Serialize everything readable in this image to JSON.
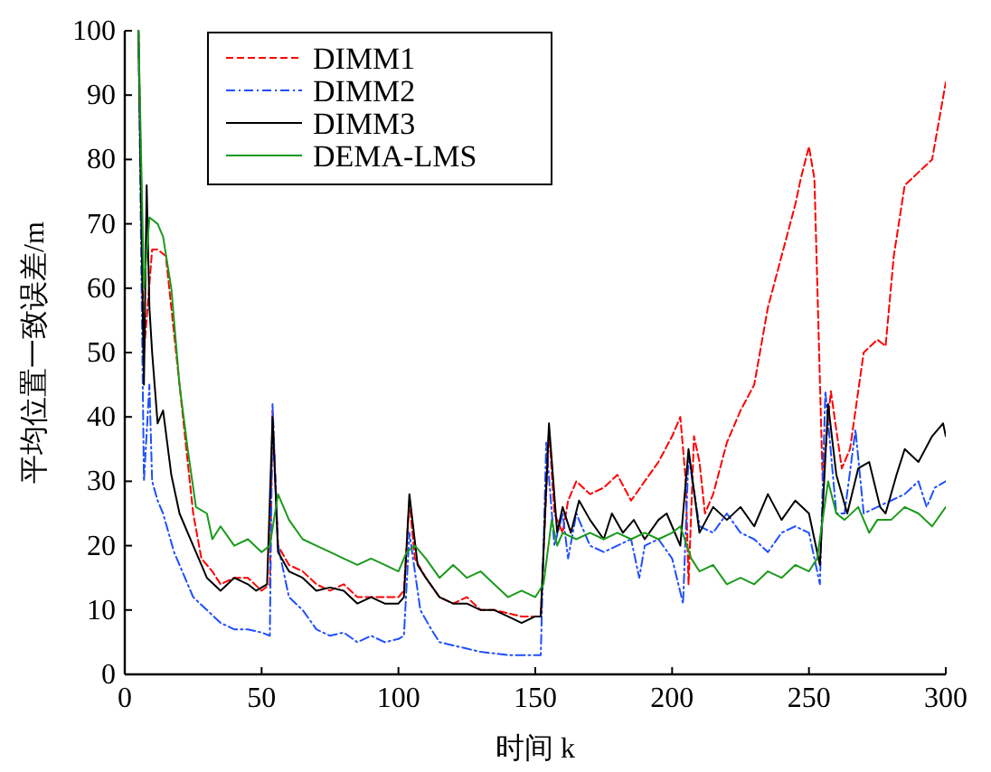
{
  "chart_data": {
    "type": "line",
    "xlabel": "时间 k",
    "ylabel": "平均位置一致误差/m",
    "xlim": [
      0,
      300
    ],
    "ylim": [
      0,
      100
    ],
    "xticks": [
      0,
      50,
      100,
      150,
      200,
      250,
      300
    ],
    "yticks": [
      0,
      10,
      20,
      30,
      40,
      50,
      60,
      70,
      80,
      90,
      100
    ],
    "grid": false,
    "legend": "top left",
    "series": [
      {
        "name": "DIMM1",
        "color": "#ff0000",
        "line_style": "dashed",
        "x": [
          5,
          7,
          10,
          12,
          15,
          20,
          25,
          28,
          32,
          35,
          40,
          45,
          50,
          53,
          54,
          56,
          60,
          65,
          70,
          75,
          80,
          85,
          90,
          95,
          100,
          102,
          104,
          106,
          110,
          115,
          120,
          125,
          130,
          135,
          140,
          145,
          150,
          152,
          155,
          157,
          160,
          162,
          165,
          170,
          175,
          180,
          185,
          190,
          195,
          200,
          203,
          205,
          206,
          208,
          210,
          212,
          215,
          220,
          225,
          230,
          235,
          240,
          245,
          247,
          250,
          252,
          255,
          258,
          262,
          265,
          270,
          275,
          278,
          281,
          285,
          290,
          295,
          300
        ],
        "values": [
          100,
          50,
          66,
          66,
          65,
          45,
          25,
          18,
          16,
          14,
          15,
          15,
          13,
          14,
          41,
          20,
          17,
          16,
          14,
          13,
          14,
          12,
          12,
          12,
          12,
          13,
          27,
          18,
          15,
          12,
          11,
          12,
          10,
          10,
          9.5,
          9,
          9,
          9,
          38,
          25,
          22,
          27,
          30,
          28,
          29,
          31,
          27,
          30,
          33,
          37,
          40,
          30,
          14,
          37,
          33,
          25,
          28,
          36,
          41,
          45,
          57,
          65,
          73,
          77,
          82,
          77,
          30,
          44,
          32,
          35,
          50,
          52,
          51,
          65,
          76,
          78,
          80,
          92
        ]
      },
      {
        "name": "DIMM2",
        "color": "#1f4fff",
        "line_style": "dashdot",
        "x": [
          5,
          7,
          9,
          10,
          12,
          14,
          18,
          22,
          25,
          30,
          35,
          40,
          45,
          50,
          53,
          54,
          56,
          60,
          65,
          70,
          75,
          80,
          85,
          90,
          95,
          100,
          102,
          104,
          108,
          112,
          115,
          120,
          125,
          130,
          140,
          150,
          152,
          154,
          157,
          160,
          162,
          165,
          170,
          175,
          180,
          185,
          188,
          190,
          195,
          200,
          204,
          206,
          210,
          215,
          220,
          225,
          230,
          235,
          240,
          245,
          250,
          254,
          256,
          260,
          263,
          267,
          270,
          275,
          280,
          285,
          290,
          293,
          296,
          300
        ],
        "values": [
          100,
          30,
          45,
          30,
          27,
          25,
          19,
          15,
          12,
          10,
          8,
          7,
          7,
          6.5,
          6,
          42,
          20,
          12,
          10,
          7,
          6,
          6.5,
          5,
          6,
          5,
          5.5,
          6,
          22,
          10,
          7,
          5,
          4.5,
          4,
          3.5,
          3,
          3,
          3,
          36,
          20,
          25,
          18,
          25,
          20,
          19,
          20,
          21,
          15,
          20,
          21,
          18,
          11,
          34,
          23,
          22,
          25,
          22,
          21,
          19,
          22,
          23,
          22,
          14,
          44,
          25,
          25,
          38,
          25,
          26,
          27,
          28,
          30,
          26,
          29,
          30
        ]
      },
      {
        "name": "DIMM3",
        "color": "#000000",
        "line_style": "solid",
        "x": [
          5,
          7,
          8,
          9,
          10,
          12,
          14,
          17,
          20,
          25,
          28,
          30,
          35,
          40,
          45,
          48,
          52,
          54,
          56,
          60,
          65,
          70,
          75,
          80,
          85,
          90,
          95,
          100,
          102,
          104,
          107,
          110,
          115,
          120,
          125,
          130,
          135,
          140,
          145,
          150,
          152,
          155,
          158,
          160,
          163,
          166,
          170,
          175,
          178,
          182,
          186,
          190,
          195,
          198,
          200,
          203,
          206,
          210,
          215,
          220,
          225,
          230,
          235,
          240,
          245,
          250,
          254,
          257,
          260,
          264,
          268,
          272,
          276,
          278,
          282,
          285,
          290,
          295,
          299,
          300
        ],
        "values": [
          100,
          45,
          76,
          57,
          50,
          39,
          41,
          31,
          25,
          20,
          17,
          15,
          13,
          15,
          14,
          13,
          14,
          40,
          19,
          16,
          15,
          13,
          13.5,
          13,
          11,
          12,
          11,
          11,
          12,
          28,
          17,
          15,
          12,
          11,
          11,
          10,
          10,
          9,
          8,
          9,
          9,
          39,
          22,
          26,
          22,
          27,
          24,
          21,
          25,
          22,
          24,
          21,
          24,
          25,
          23,
          20,
          35,
          22,
          26,
          24,
          26,
          23,
          28,
          24,
          27,
          25,
          17,
          42,
          31,
          25,
          32,
          33,
          26,
          25,
          31,
          35,
          33,
          37,
          39,
          37
        ]
      },
      {
        "name": "DEMA-LMS",
        "color": "#1a9a1a",
        "line_style": "solid",
        "x": [
          5,
          7,
          9,
          12,
          14,
          17,
          20,
          23,
          26,
          30,
          32,
          35,
          40,
          45,
          50,
          53,
          56,
          60,
          65,
          70,
          75,
          80,
          85,
          90,
          95,
          100,
          103,
          106,
          110,
          115,
          120,
          125,
          130,
          135,
          140,
          145,
          150,
          153,
          156,
          158,
          160,
          165,
          170,
          175,
          180,
          185,
          190,
          195,
          200,
          203,
          207,
          210,
          215,
          220,
          225,
          230,
          235,
          240,
          245,
          250,
          253,
          257,
          260,
          263,
          268,
          272,
          275,
          280,
          285,
          290,
          295,
          300
        ],
        "values": [
          100,
          60,
          71,
          70,
          68,
          60,
          45,
          35,
          26,
          25,
          21,
          23,
          20,
          21,
          19,
          20,
          28,
          24,
          21,
          20,
          19,
          18,
          17,
          18,
          17,
          16,
          19,
          20,
          18,
          15,
          17,
          15,
          16,
          14,
          12,
          13,
          12,
          14,
          24,
          20,
          22,
          21,
          22,
          21,
          22,
          21,
          22,
          21,
          22,
          23,
          18,
          16,
          17,
          14,
          15,
          14,
          16,
          15,
          17,
          16,
          18,
          30,
          25,
          24,
          26,
          22,
          24,
          24,
          26,
          25,
          23,
          26
        ]
      }
    ]
  }
}
